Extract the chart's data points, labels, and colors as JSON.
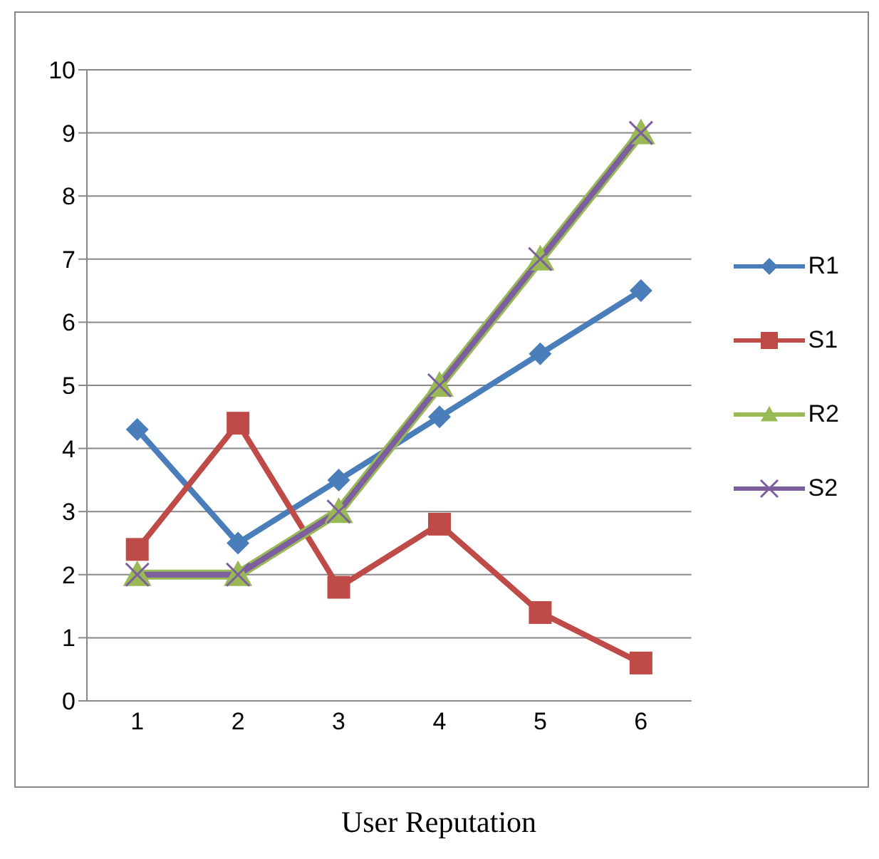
{
  "chart_data": {
    "type": "line",
    "xlabel": "User Reputation",
    "categories": [
      "1",
      "2",
      "3",
      "4",
      "5",
      "6"
    ],
    "series": [
      {
        "name": "R1",
        "color": "#4a7ebb",
        "marker": "diamond",
        "values": [
          4.3,
          2.5,
          3.5,
          4.5,
          5.5,
          6.5
        ]
      },
      {
        "name": "S1",
        "color": "#be4b48",
        "marker": "square",
        "values": [
          2.4,
          4.4,
          1.8,
          2.8,
          1.4,
          0.6
        ]
      },
      {
        "name": "R2",
        "color": "#98b954",
        "marker": "triangle",
        "values": [
          2,
          2,
          3,
          5,
          7,
          9
        ]
      },
      {
        "name": "S2",
        "color": "#7d5fa0",
        "marker": "cross",
        "values": [
          2,
          2,
          3,
          5,
          7,
          9
        ]
      }
    ],
    "ylim": [
      0,
      10
    ],
    "yticks": [
      0,
      1,
      2,
      3,
      4,
      5,
      6,
      7,
      8,
      9,
      10
    ],
    "grid": "y",
    "legend": "right"
  }
}
